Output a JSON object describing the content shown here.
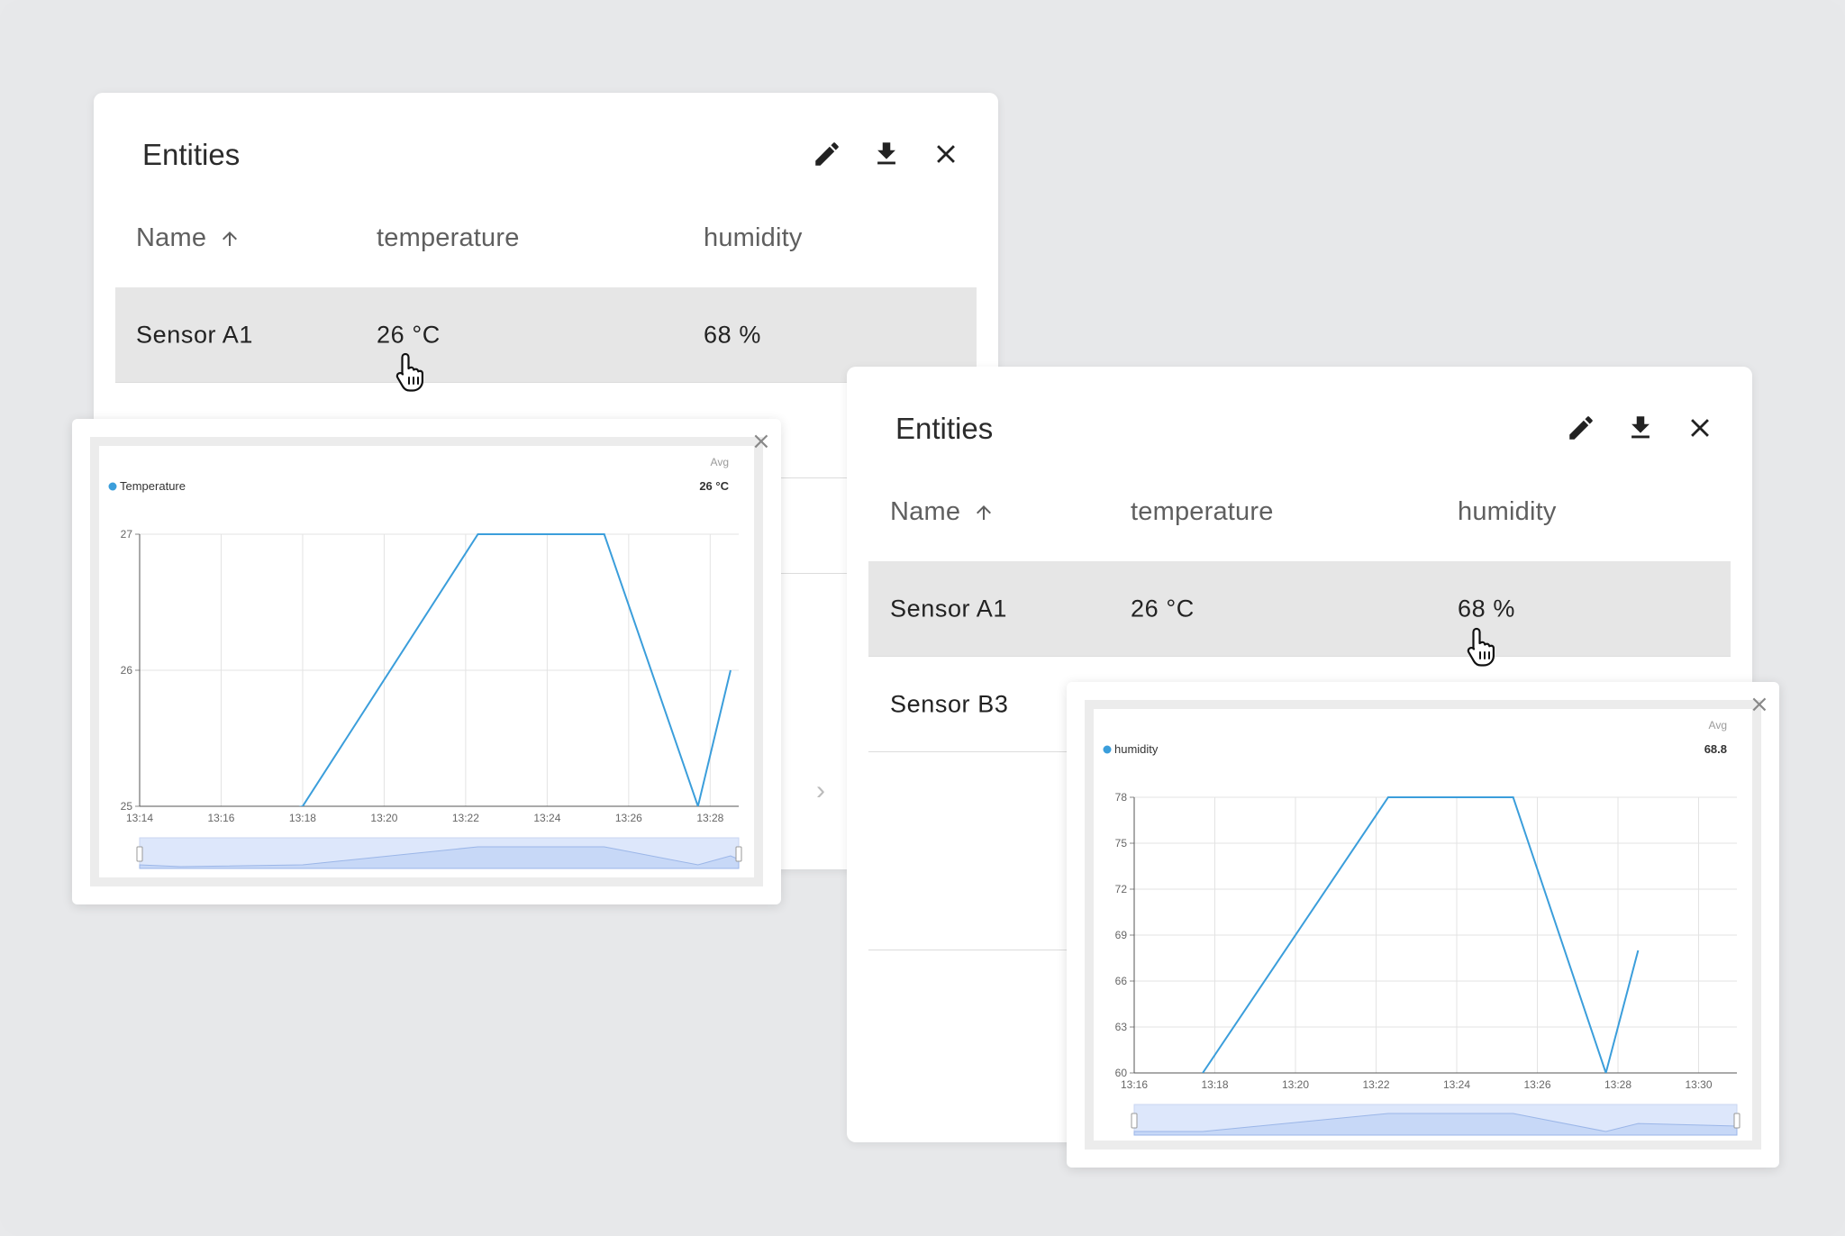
{
  "colors": {
    "accent": "#3b9edb",
    "row_selected": "#e6e6e6",
    "background": "#e7e8ea"
  },
  "card_left": {
    "title": "Entities",
    "actions": [
      "edit-icon",
      "download-icon",
      "close-icon"
    ],
    "columns": {
      "name": "Name",
      "temperature": "temperature",
      "humidity": "humidity"
    },
    "rows": [
      {
        "name": "Sensor A1",
        "temperature": "26 °C",
        "humidity": "68 %"
      }
    ]
  },
  "card_right": {
    "title": "Entities",
    "actions": [
      "edit-icon",
      "download-icon",
      "close-icon"
    ],
    "columns": {
      "name": "Name",
      "temperature": "temperature",
      "humidity": "humidity"
    },
    "rows": [
      {
        "name": "Sensor A1",
        "temperature": "26 °C",
        "humidity": "68 %"
      },
      {
        "name": "Sensor B3"
      }
    ]
  },
  "popup_temperature": {
    "close": "×",
    "avg_label": "Avg",
    "chart_data": {
      "type": "line",
      "series": [
        {
          "name": "Temperature",
          "x": [
            "13:15",
            "13:18",
            "13:22.3",
            "13:25.4",
            "13:27.7",
            "13:28.5"
          ],
          "values": [
            24.8,
            25,
            27,
            27,
            25,
            26
          ]
        }
      ],
      "legend_value": "26 °C",
      "x_ticks": [
        "13:14",
        "13:16",
        "13:18",
        "13:20",
        "13:22",
        "13:24",
        "13:26",
        "13:28"
      ],
      "y_ticks": [
        "25",
        "26",
        "27"
      ],
      "ylim": [
        25,
        27
      ],
      "grid": true
    }
  },
  "popup_humidity": {
    "close": "×",
    "avg_label": "Avg",
    "chart_data": {
      "type": "line",
      "series": [
        {
          "name": "humidity",
          "x": [
            "13:17.7",
            "13:22.3",
            "13:25.4",
            "13:27.7",
            "13:28.5"
          ],
          "values": [
            60,
            78,
            78,
            60,
            68
          ]
        }
      ],
      "legend_value": "68.8",
      "x_ticks": [
        "13:16",
        "13:18",
        "13:20",
        "13:22",
        "13:24",
        "13:26",
        "13:28",
        "13:30"
      ],
      "y_ticks": [
        "60",
        "63",
        "66",
        "69",
        "72",
        "75",
        "78"
      ],
      "ylim": [
        60,
        78
      ],
      "grid": true
    }
  }
}
